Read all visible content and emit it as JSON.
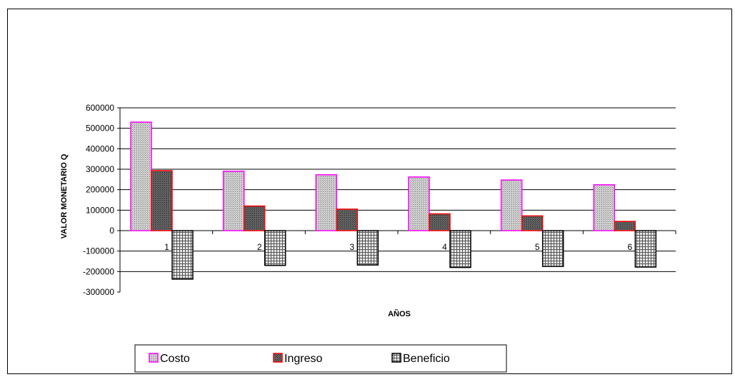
{
  "chart_data": {
    "type": "bar",
    "title": "",
    "xlabel": "AÑOS",
    "ylabel": "VALOR MONETARIO Q",
    "categories": [
      "1",
      "2",
      "3",
      "4",
      "5",
      "6"
    ],
    "ylim": [
      -300000,
      600000
    ],
    "yticks": [
      600000,
      500000,
      400000,
      300000,
      200000,
      100000,
      0,
      -100000,
      -200000,
      -300000
    ],
    "ytick_labels": [
      "600000",
      "500000",
      "400000",
      "300000",
      "200000",
      "100000",
      "0",
      "-100000",
      "-200000",
      "-300000"
    ],
    "grid": true,
    "legend_position": "bottom",
    "series": [
      {
        "name": "Costo",
        "values": [
          530000,
          290000,
          273000,
          262000,
          247000,
          224000
        ],
        "border": "#ff00ff",
        "fill": "#a8a8a8"
      },
      {
        "name": "Ingreso",
        "values": [
          293000,
          120000,
          105000,
          82000,
          72000,
          45000
        ],
        "border": "#ff0000",
        "fill": "#555555"
      },
      {
        "name": "Beneficio",
        "values": [
          -237000,
          -170000,
          -168000,
          -180000,
          -175000,
          -178000
        ],
        "border": "#000000",
        "fill": "#c8c8c8"
      }
    ]
  }
}
